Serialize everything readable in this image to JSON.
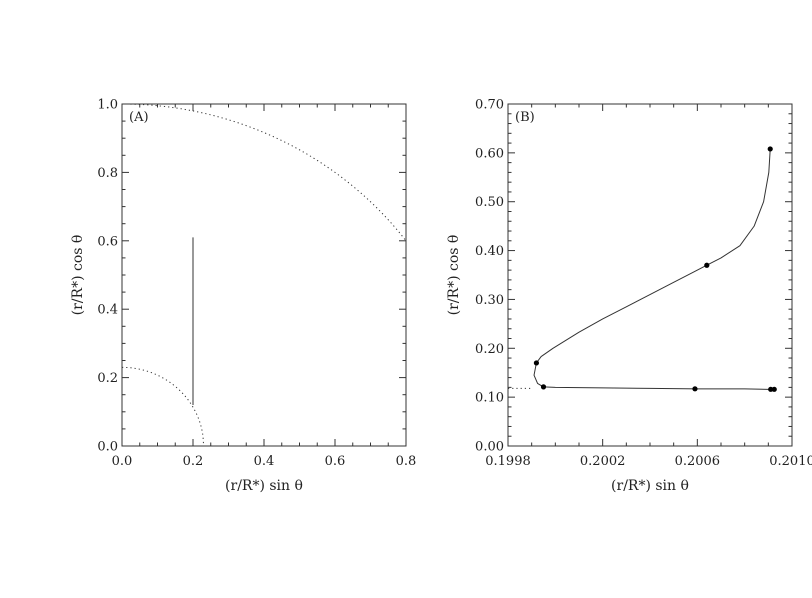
{
  "chart_data": [
    {
      "type": "line",
      "panel_label": "(A)",
      "xlabel": "(r/R*) sin θ",
      "ylabel": "(r/R*) cos θ",
      "xlim": [
        0,
        0.8
      ],
      "ylim": [
        0,
        1.0
      ],
      "xticks": [
        0.0,
        0.2,
        0.4,
        0.6,
        0.8
      ],
      "xtick_labels": [
        "0.0",
        "0.2",
        "0.4",
        "0.6",
        "0.8"
      ],
      "yticks": [
        0.0,
        0.2,
        0.4,
        0.6,
        0.8,
        1.0
      ],
      "ytick_labels": [
        "0.0",
        "0.2",
        "0.4",
        "0.6",
        "0.8",
        "1.0"
      ],
      "grid": false,
      "series": [
        {
          "style": "dotted",
          "kind": "arc",
          "radius": 1.0,
          "x_from": 0,
          "x_to": 0.8
        },
        {
          "style": "dotted",
          "kind": "arc",
          "radius": 0.23,
          "x_from": 0,
          "x_to": 0.23
        },
        {
          "style": "solid",
          "x": [
            0.2,
            0.2
          ],
          "y": [
            0.12,
            0.61
          ]
        }
      ]
    },
    {
      "type": "line",
      "panel_label": "(B)",
      "xlabel": "(r/R*) sin θ",
      "ylabel": "(r/R*) cos θ",
      "xlim": [
        0.1998,
        0.201
      ],
      "ylim": [
        0.0,
        0.7
      ],
      "xticks": [
        0.1998,
        0.2002,
        0.2006,
        0.201
      ],
      "xtick_labels": [
        "0.1998",
        "0.2002",
        "0.2006",
        "0.2010"
      ],
      "yticks": [
        0.0,
        0.1,
        0.2,
        0.3,
        0.4,
        0.5,
        0.6,
        0.7
      ],
      "ytick_labels": [
        "0.00",
        "0.10",
        "0.20",
        "0.30",
        "0.40",
        "0.50",
        "0.60",
        "0.70"
      ],
      "grid": false,
      "series": [
        {
          "style": "solid",
          "x": [
            0.200908,
            0.200902,
            0.20088,
            0.20084,
            0.20078,
            0.2007,
            0.20064,
            0.20058,
            0.2005,
            0.2004,
            0.2003,
            0.2002,
            0.2001,
            0.19999,
            0.19994,
            0.19992,
            0.19991,
            0.199925,
            0.19995,
            0.2,
            0.2002,
            0.2004,
            0.2006,
            0.2008,
            0.2009,
            0.20092
          ],
          "y": [
            0.608,
            0.56,
            0.5,
            0.45,
            0.41,
            0.385,
            0.37,
            0.355,
            0.335,
            0.31,
            0.285,
            0.26,
            0.233,
            0.2,
            0.183,
            0.17,
            0.145,
            0.128,
            0.121,
            0.12,
            0.119,
            0.118,
            0.117,
            0.117,
            0.116,
            0.116
          ]
        },
        {
          "style": "dotted",
          "x": [
            0.1998,
            0.1999
          ],
          "y": [
            0.118,
            0.118
          ]
        },
        {
          "style": "markers",
          "x": [
            0.200908,
            0.20064,
            0.19992,
            0.19995,
            0.20059,
            0.20091,
            0.200925
          ],
          "y": [
            0.608,
            0.37,
            0.17,
            0.121,
            0.117,
            0.116,
            0.116
          ]
        }
      ]
    }
  ]
}
